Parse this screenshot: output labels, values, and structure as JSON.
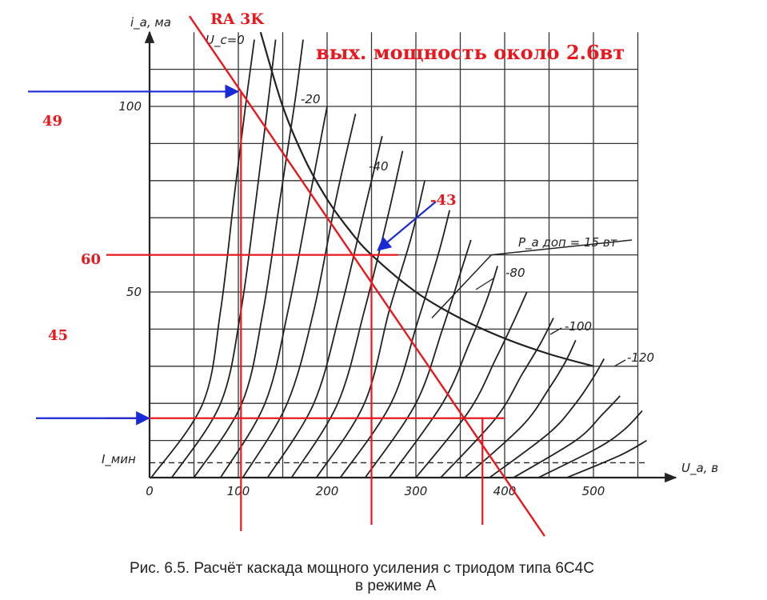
{
  "chart_data": {
    "type": "line",
    "title": "",
    "caption_line1": "Рис. 6.5. Расчёт каскада мощного усиления с триодом типа 6С4С",
    "caption_line2": "в режиме А",
    "xlabel": "U_a, в",
    "ylabel": "i_a, ма",
    "xlim": [
      0,
      560
    ],
    "ylim": [
      0,
      120
    ],
    "x_ticks": [
      "0",
      "100",
      "200",
      "300",
      "400",
      "500"
    ],
    "y_ticks": [
      "50",
      "100"
    ],
    "grid": true,
    "grid_x_step": 50,
    "grid_y_step": 10,
    "i_min_label": "I_мин",
    "i_min_value": 4,
    "curve_labels": [
      {
        "text": "U_c=0",
        "grid": 0
      },
      {
        "text": "-20",
        "grid": -20
      },
      {
        "text": "-40",
        "grid": -40
      },
      {
        "text": "-80",
        "grid": -80
      },
      {
        "text": "-100",
        "grid": -100
      },
      {
        "text": "-120",
        "grid": -120
      }
    ],
    "grid_curves": [
      {
        "grid": 0,
        "x": [
          2,
          60,
          80,
          95,
          108,
          118
        ],
        "y": [
          0,
          20,
          45,
          75,
          100,
          118
        ]
      },
      {
        "grid": -10,
        "x": [
          25,
          80,
          103,
          120,
          133,
          142
        ],
        "y": [
          0,
          20,
          45,
          75,
          100,
          118
        ]
      },
      {
        "grid": -20,
        "x": [
          50,
          104,
          128,
          147,
          163,
          173
        ],
        "y": [
          0,
          20,
          45,
          75,
          100,
          118
        ]
      },
      {
        "grid": -30,
        "x": [
          80,
          130,
          156,
          180,
          200
        ],
        "y": [
          0,
          20,
          45,
          75,
          100
        ]
      },
      {
        "grid": -40,
        "x": [
          105,
          155,
          185,
          210,
          232
        ],
        "y": [
          0,
          20,
          45,
          75,
          98
        ]
      },
      {
        "grid": -50,
        "x": [
          133,
          185,
          215,
          240,
          262
        ],
        "y": [
          0,
          20,
          45,
          70,
          92
        ]
      },
      {
        "grid": -60,
        "x": [
          160,
          212,
          242,
          268,
          285
        ],
        "y": [
          0,
          20,
          45,
          70,
          88
        ]
      },
      {
        "grid": -70,
        "x": [
          188,
          242,
          270,
          295,
          310
        ],
        "y": [
          0,
          20,
          45,
          65,
          80
        ]
      },
      {
        "grid": -80,
        "x": [
          215,
          272,
          302,
          325,
          338
        ],
        "y": [
          0,
          20,
          42,
          60,
          72
        ]
      },
      {
        "grid": -90,
        "x": [
          243,
          300,
          330,
          350,
          362
        ],
        "y": [
          0,
          20,
          40,
          55,
          64
        ]
      },
      {
        "grid": -100,
        "x": [
          270,
          330,
          360,
          380,
          392
        ],
        "y": [
          0,
          20,
          36,
          48,
          57
        ]
      },
      {
        "grid": -110,
        "x": [
          300,
          360,
          390,
          410,
          425
        ],
        "y": [
          0,
          18,
          32,
          42,
          50
        ]
      },
      {
        "grid": -120,
        "x": [
          328,
          390,
          420,
          440,
          455
        ],
        "y": [
          0,
          16,
          28,
          36,
          43
        ]
      },
      {
        "grid": -130,
        "x": [
          355,
          420,
          450,
          468,
          480
        ],
        "y": [
          0,
          14,
          24,
          31,
          37
        ]
      },
      {
        "grid": -140,
        "x": [
          383,
          450,
          480,
          500,
          512
        ],
        "y": [
          0,
          12,
          20,
          27,
          32
        ]
      },
      {
        "grid": -150,
        "x": [
          410,
          480,
          510,
          530
        ],
        "y": [
          0,
          10,
          17,
          22
        ]
      },
      {
        "grid": -160,
        "x": [
          438,
          505,
          535,
          555
        ],
        "y": [
          0,
          8,
          13,
          18
        ]
      },
      {
        "grid": -170,
        "x": [
          470,
          530,
          560
        ],
        "y": [
          0,
          6,
          10
        ]
      }
    ],
    "power_curve": {
      "label": "P_a доп = 15 вт",
      "x": [
        125,
        150,
        175,
        200,
        225,
        250,
        300,
        350,
        400,
        450,
        500
      ],
      "y": [
        120,
        100,
        85.7,
        75,
        66.7,
        60,
        50,
        42.9,
        37.5,
        33.3,
        30
      ]
    },
    "annotations": {
      "ra_label": "RA 3K",
      "power_text": "вых. мощность  около 2.6вт",
      "left_labels": [
        "49",
        "60",
        "45"
      ],
      "bias_label": "-43",
      "load_line": {
        "x": [
          103,
          400
        ],
        "y": [
          104,
          0
        ]
      },
      "operating_point": {
        "x": 250,
        "y": 60
      },
      "max_point": {
        "x": 103,
        "y": 104
      },
      "min_point": {
        "x": 375,
        "y": 16
      }
    }
  },
  "colors": {
    "ink": "#222222",
    "grid": "#333333",
    "red": "#e8181e",
    "blue": "#1a2ad6"
  }
}
